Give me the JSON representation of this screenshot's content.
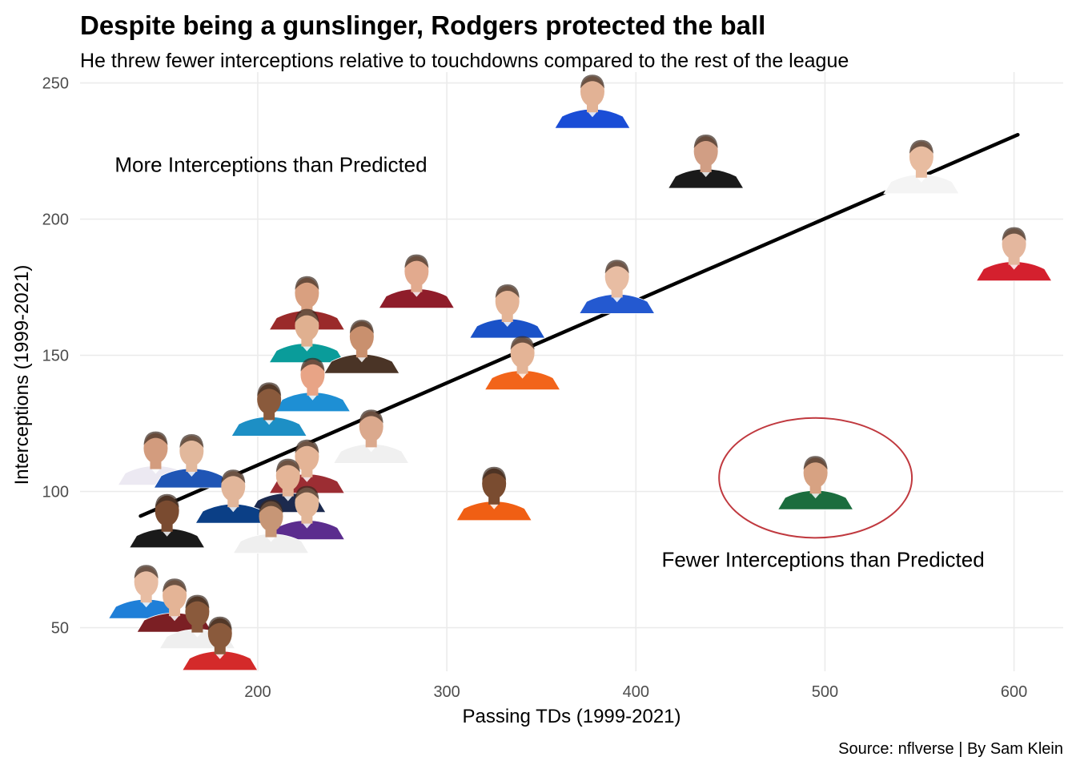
{
  "chart_data": {
    "type": "scatter",
    "title": "Despite being a gunslinger, Rodgers protected the ball",
    "subtitle": "He threw fewer interceptions relative to touchdowns compared to the rest of the league",
    "xlabel": "Passing TDs (1999-2021)",
    "ylabel": "Interceptions (1999-2021)",
    "caption": "Source: nflverse | By Sam Klein",
    "xlim": [
      106,
      626
    ],
    "ylim": [
      34,
      254
    ],
    "x_ticks": [
      200,
      300,
      400,
      500,
      600
    ],
    "y_ticks": [
      50,
      100,
      150,
      200,
      250
    ],
    "grid": true,
    "annotations": [
      {
        "text": "More Interceptions than Predicted",
        "x": 207,
        "y": 220
      },
      {
        "text": "Fewer Interceptions than Predicted",
        "x": 499,
        "y": 75
      }
    ],
    "trend_line": {
      "x": [
        138,
        602
      ],
      "y": [
        91,
        231
      ]
    },
    "highlight": {
      "x": 495,
      "y": 105,
      "rx": 51,
      "ry": 22,
      "color": "#c0393f"
    },
    "points": [
      {
        "x": 377,
        "y": 241,
        "jersey": "#1a4dd6",
        "skin": "#e2b295"
      },
      {
        "x": 437,
        "y": 219,
        "jersey": "#1a1a1a",
        "skin": "#d19e84"
      },
      {
        "x": 551,
        "y": 217,
        "jersey": "#f4f4f4",
        "skin": "#e8bca0"
      },
      {
        "x": 600,
        "y": 185,
        "jersey": "#d4202e",
        "skin": "#e4b79e"
      },
      {
        "x": 284,
        "y": 175,
        "jersey": "#8f1d2a",
        "skin": "#e2aa8e"
      },
      {
        "x": 226,
        "y": 167,
        "jersey": "#9a2a2a",
        "skin": "#d9a080"
      },
      {
        "x": 226,
        "y": 155,
        "jersey": "#0a9c9a",
        "skin": "#e0b090"
      },
      {
        "x": 255,
        "y": 151,
        "jersey": "#4a3426",
        "skin": "#c9906e"
      },
      {
        "x": 332,
        "y": 164,
        "jersey": "#1a52c8",
        "skin": "#e4b496"
      },
      {
        "x": 390,
        "y": 173,
        "jersey": "#2459d0",
        "skin": "#e8bda3"
      },
      {
        "x": 340,
        "y": 145,
        "jersey": "#f2641a",
        "skin": "#e4b496"
      },
      {
        "x": 229,
        "y": 137,
        "jersey": "#1e8fd4",
        "skin": "#e8a486"
      },
      {
        "x": 206,
        "y": 128,
        "jersey": "#1d8fc5",
        "skin": "#8a5a3c"
      },
      {
        "x": 260,
        "y": 118,
        "jersey": "#f0f0f0",
        "skin": "#dba98d"
      },
      {
        "x": 146,
        "y": 110,
        "jersey": "#ece9f2",
        "skin": "#d39c7e"
      },
      {
        "x": 165,
        "y": 109,
        "jersey": "#1f55b5",
        "skin": "#e2b89c"
      },
      {
        "x": 226,
        "y": 107,
        "jersey": "#9c2d33",
        "skin": "#e4b496"
      },
      {
        "x": 216,
        "y": 100,
        "jersey": "#1c2a4e",
        "skin": "#e4b496"
      },
      {
        "x": 187,
        "y": 96,
        "jersey": "#0b3f86",
        "skin": "#e2b69a"
      },
      {
        "x": 325,
        "y": 97,
        "jersey": "#f05f14",
        "skin": "#7a4c30"
      },
      {
        "x": 495,
        "y": 101,
        "jersey": "#1b6d3e",
        "skin": "#d7a282"
      },
      {
        "x": 152,
        "y": 87,
        "jersey": "#1a1a1a",
        "skin": "#7a4b30"
      },
      {
        "x": 226,
        "y": 90,
        "jersey": "#5b2d8e",
        "skin": "#e2b698"
      },
      {
        "x": 207,
        "y": 85,
        "jersey": "#efefef",
        "skin": "#c79676"
      },
      {
        "x": 141,
        "y": 61,
        "jersey": "#1f7fd8",
        "skin": "#e8bda3"
      },
      {
        "x": 156,
        "y": 56,
        "jersey": "#7b1f24",
        "skin": "#e4b496"
      },
      {
        "x": 168,
        "y": 50,
        "jersey": "#efefef",
        "skin": "#8a5a3c"
      },
      {
        "x": 180,
        "y": 42,
        "jersey": "#d42a2a",
        "skin": "#8a5a3c"
      }
    ]
  }
}
